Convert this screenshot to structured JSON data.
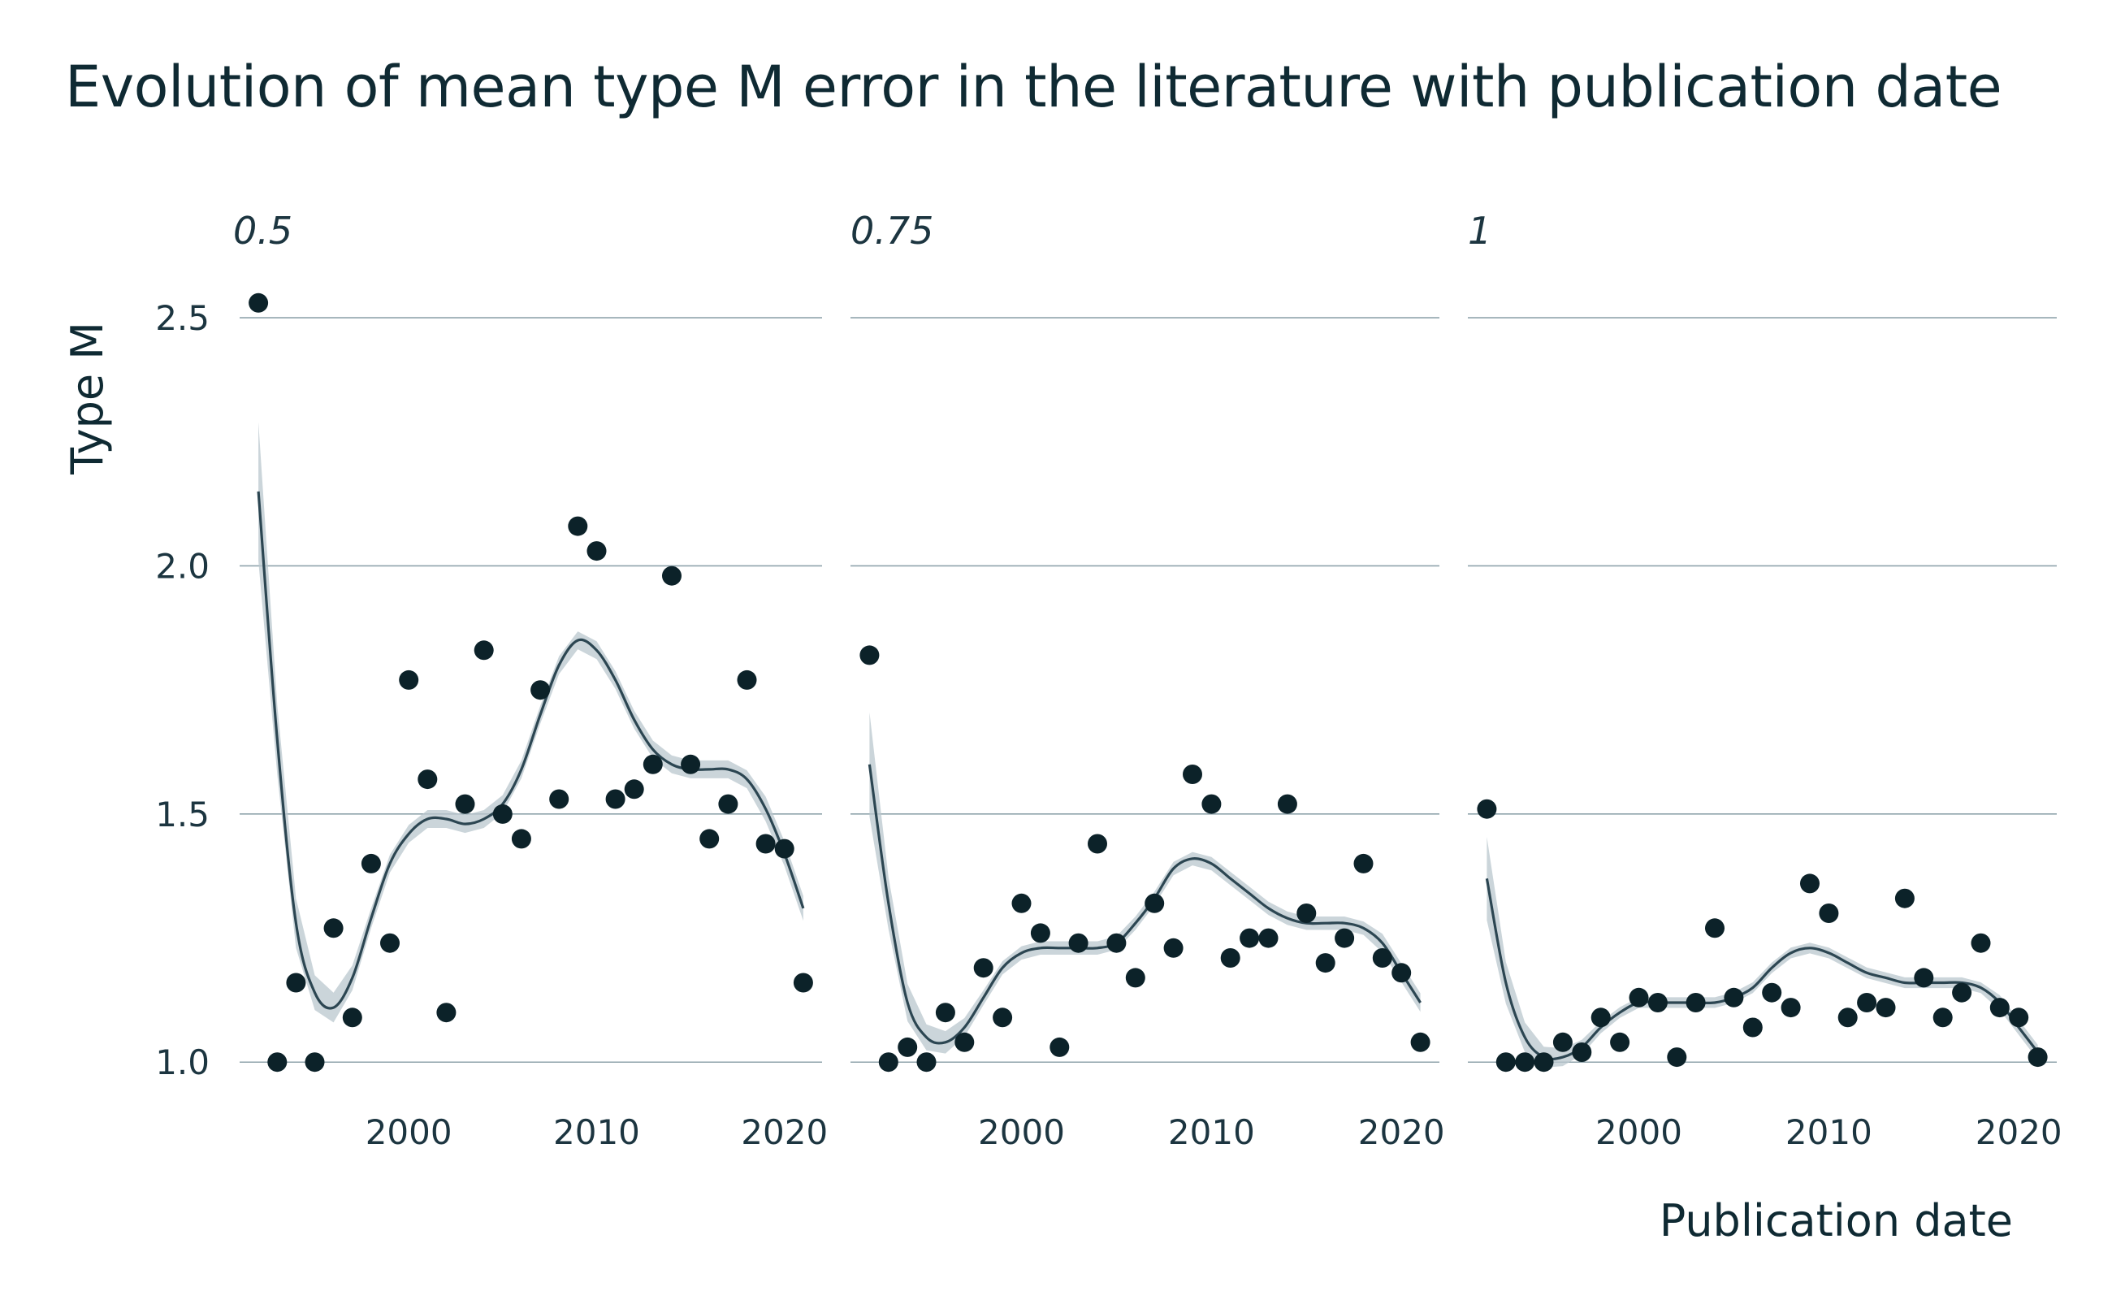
{
  "title": "Evolution of mean type M error in the literature with publication date",
  "colors": {
    "points": "#0c2229",
    "smooth_line": "#2c4652",
    "ribbon": "#b9c7cd",
    "grid": "#8fa3ab",
    "text": "#0f2a33"
  },
  "chart_data": {
    "type": "scatter",
    "title": "Evolution of mean type M error in the literature with publication date",
    "xlabel": "Publication date",
    "ylabel": "Type M",
    "xlim": [
      1991,
      2022
    ],
    "ylim": [
      0.93,
      2.6
    ],
    "x_ticks": [
      "2000",
      "2010",
      "2020"
    ],
    "y_ticks": [
      "1.0",
      "1.5",
      "2.0",
      "2.5"
    ],
    "grid": "horizontal major lines only",
    "smoother": "loess with confidence band",
    "facets": [
      {
        "label": "0.5",
        "x": [
          1992,
          1993,
          1994,
          1995,
          1996,
          1997,
          1998,
          1999,
          2000,
          2001,
          2002,
          2003,
          2004,
          2005,
          2006,
          2007,
          2008,
          2009,
          2010,
          2011,
          2012,
          2013,
          2014,
          2015,
          2016,
          2017,
          2018,
          2019,
          2020,
          2021
        ],
        "y": [
          2.53,
          1.0,
          1.16,
          1.0,
          1.27,
          1.09,
          1.4,
          1.24,
          1.77,
          1.57,
          1.1,
          1.52,
          1.83,
          1.5,
          1.45,
          1.75,
          1.53,
          2.08,
          2.03,
          1.53,
          1.55,
          1.6,
          1.98,
          1.6,
          1.45,
          1.52,
          1.77,
          1.44,
          1.43,
          1.16
        ],
        "smooth": [
          [
            1992,
            2.15
          ],
          [
            1993,
            1.65
          ],
          [
            1994,
            1.28
          ],
          [
            1995,
            1.14
          ],
          [
            1996,
            1.11
          ],
          [
            1997,
            1.17
          ],
          [
            1998,
            1.29
          ],
          [
            1999,
            1.4
          ],
          [
            2000,
            1.46
          ],
          [
            2001,
            1.49
          ],
          [
            2002,
            1.49
          ],
          [
            2003,
            1.48
          ],
          [
            2004,
            1.49
          ],
          [
            2005,
            1.52
          ],
          [
            2006,
            1.59
          ],
          [
            2007,
            1.7
          ],
          [
            2008,
            1.8
          ],
          [
            2009,
            1.85
          ],
          [
            2010,
            1.83
          ],
          [
            2011,
            1.77
          ],
          [
            2012,
            1.69
          ],
          [
            2013,
            1.63
          ],
          [
            2014,
            1.6
          ],
          [
            2015,
            1.59
          ],
          [
            2016,
            1.59
          ],
          [
            2017,
            1.59
          ],
          [
            2018,
            1.57
          ],
          [
            2019,
            1.51
          ],
          [
            2020,
            1.42
          ],
          [
            2021,
            1.31
          ]
        ]
      },
      {
        "label": "0.75",
        "x": [
          1992,
          1993,
          1994,
          1995,
          1996,
          1997,
          1998,
          1999,
          2000,
          2001,
          2002,
          2003,
          2004,
          2005,
          2006,
          2007,
          2008,
          2009,
          2010,
          2011,
          2012,
          2013,
          2014,
          2015,
          2016,
          2017,
          2018,
          2019,
          2020,
          2021
        ],
        "y": [
          1.82,
          1.0,
          1.03,
          1.0,
          1.1,
          1.04,
          1.19,
          1.09,
          1.32,
          1.26,
          1.03,
          1.24,
          1.44,
          1.24,
          1.17,
          1.32,
          1.23,
          1.58,
          1.52,
          1.21,
          1.25,
          1.25,
          1.52,
          1.3,
          1.2,
          1.25,
          1.4,
          1.21,
          1.18,
          1.04
        ],
        "smooth": [
          [
            1992,
            1.6
          ],
          [
            1993,
            1.32
          ],
          [
            1994,
            1.12
          ],
          [
            1995,
            1.05
          ],
          [
            1996,
            1.04
          ],
          [
            1997,
            1.07
          ],
          [
            1998,
            1.13
          ],
          [
            1999,
            1.19
          ],
          [
            2000,
            1.22
          ],
          [
            2001,
            1.23
          ],
          [
            2002,
            1.23
          ],
          [
            2003,
            1.23
          ],
          [
            2004,
            1.23
          ],
          [
            2005,
            1.24
          ],
          [
            2006,
            1.28
          ],
          [
            2007,
            1.33
          ],
          [
            2008,
            1.39
          ],
          [
            2009,
            1.41
          ],
          [
            2010,
            1.4
          ],
          [
            2011,
            1.37
          ],
          [
            2012,
            1.34
          ],
          [
            2013,
            1.31
          ],
          [
            2014,
            1.29
          ],
          [
            2015,
            1.28
          ],
          [
            2016,
            1.28
          ],
          [
            2017,
            1.28
          ],
          [
            2018,
            1.27
          ],
          [
            2019,
            1.24
          ],
          [
            2020,
            1.18
          ],
          [
            2021,
            1.12
          ]
        ]
      },
      {
        "label": "1",
        "x": [
          1992,
          1993,
          1994,
          1995,
          1996,
          1997,
          1998,
          1999,
          2000,
          2001,
          2002,
          2003,
          2004,
          2005,
          2006,
          2007,
          2008,
          2009,
          2010,
          2011,
          2012,
          2013,
          2014,
          2015,
          2016,
          2017,
          2018,
          2019,
          2020,
          2021
        ],
        "y": [
          1.51,
          1.0,
          1.0,
          1.0,
          1.04,
          1.02,
          1.09,
          1.04,
          1.13,
          1.12,
          1.01,
          1.12,
          1.27,
          1.13,
          1.07,
          1.14,
          1.11,
          1.36,
          1.3,
          1.09,
          1.12,
          1.11,
          1.33,
          1.17,
          1.09,
          1.14,
          1.24,
          1.11,
          1.09,
          1.01
        ],
        "smooth": [
          [
            1992,
            1.37
          ],
          [
            1993,
            1.16
          ],
          [
            1994,
            1.05
          ],
          [
            1995,
            1.01
          ],
          [
            1996,
            1.01
          ],
          [
            1997,
            1.03
          ],
          [
            1998,
            1.07
          ],
          [
            1999,
            1.1
          ],
          [
            2000,
            1.12
          ],
          [
            2001,
            1.12
          ],
          [
            2002,
            1.12
          ],
          [
            2003,
            1.12
          ],
          [
            2004,
            1.12
          ],
          [
            2005,
            1.13
          ],
          [
            2006,
            1.15
          ],
          [
            2007,
            1.19
          ],
          [
            2008,
            1.22
          ],
          [
            2009,
            1.23
          ],
          [
            2010,
            1.22
          ],
          [
            2011,
            1.2
          ],
          [
            2012,
            1.18
          ],
          [
            2013,
            1.17
          ],
          [
            2014,
            1.16
          ],
          [
            2015,
            1.16
          ],
          [
            2016,
            1.16
          ],
          [
            2017,
            1.16
          ],
          [
            2018,
            1.15
          ],
          [
            2019,
            1.12
          ],
          [
            2020,
            1.07
          ],
          [
            2021,
            1.02
          ]
        ]
      }
    ]
  }
}
